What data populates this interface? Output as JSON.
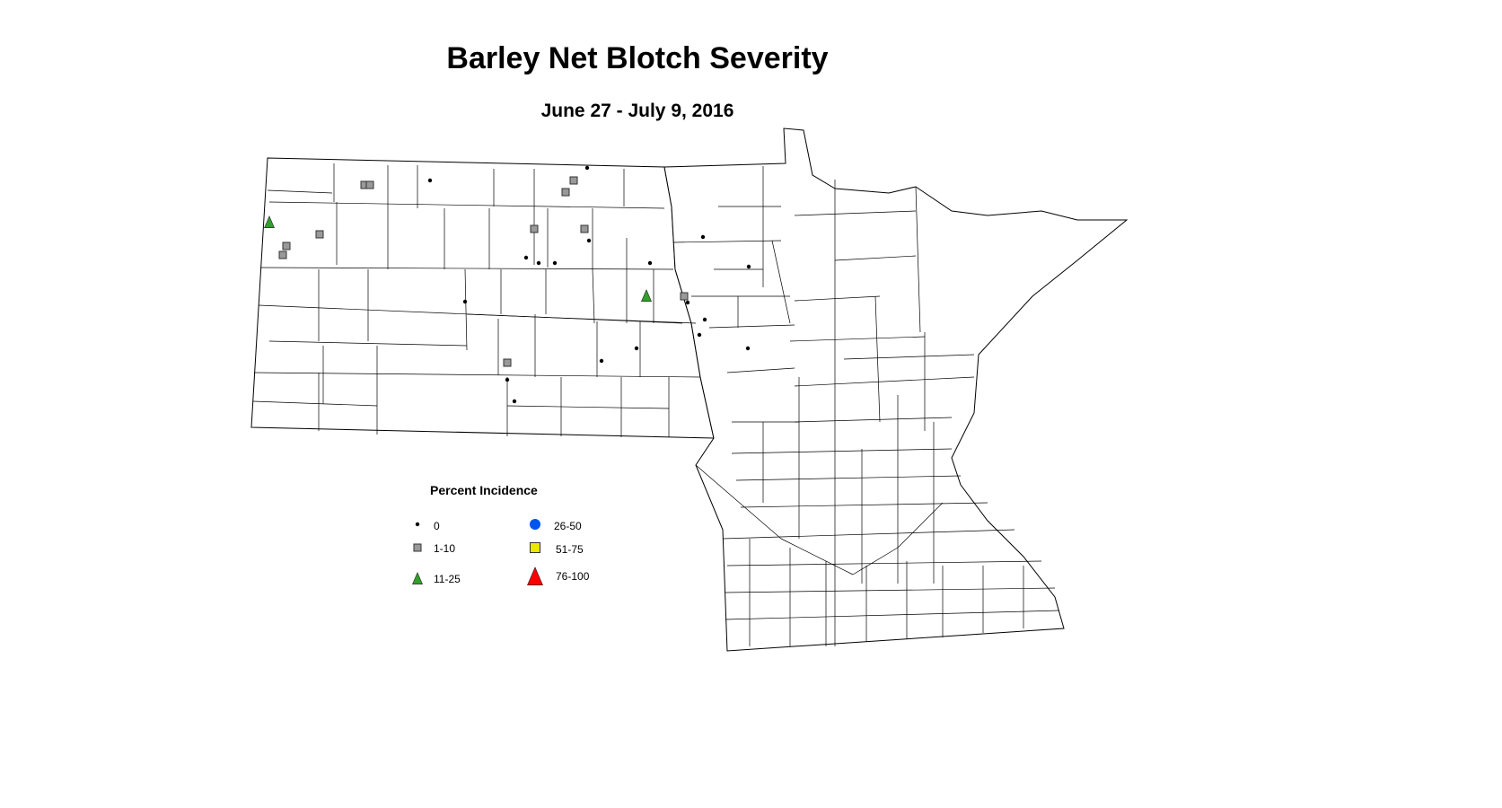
{
  "title": "Barley Net Blotch Severity",
  "subtitle": "June 27 - July 9, 2016",
  "legend": {
    "title": "Percent Incidence",
    "items": [
      {
        "label": "0",
        "symbol": "small-dot",
        "color": "#000000"
      },
      {
        "label": "1-10",
        "symbol": "gray-square",
        "color": "#999999"
      },
      {
        "label": "11-25",
        "symbol": "green-triangle",
        "color": "#33a02c"
      },
      {
        "label": "26-50",
        "symbol": "blue-circle",
        "color": "#0055ee"
      },
      {
        "label": "51-75",
        "symbol": "yellow-square",
        "color": "#e8e800"
      },
      {
        "label": "76-100",
        "symbol": "red-triangle",
        "color": "#ff0000"
      }
    ]
  }
}
